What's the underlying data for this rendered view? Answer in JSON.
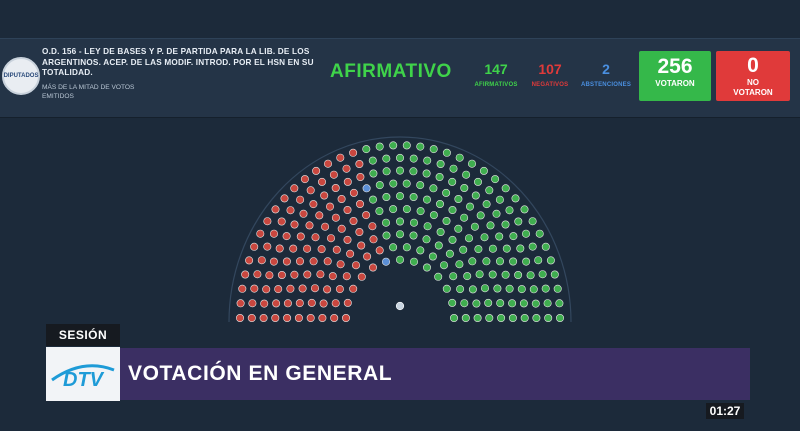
{
  "banner": {
    "logo_text": "DIPUTADOS",
    "motion_text": "O.D. 156 - LEY DE BASES Y P. DE PARTIDA PARA LA LIB. DE LOS ARGENTINOS. ACEP. DE LAS MODIF. INTROD. POR EL HSN EN SU TOTALIDAD.",
    "majority_rule": "MÁS DE LA MITAD DE VOTOS EMITIDOS",
    "result": "AFIRMATIVO",
    "afirmativos": {
      "value": "147",
      "label": "AFIRMATIVOS"
    },
    "negativos": {
      "value": "107",
      "label": "NEGATIVOS"
    },
    "abstenciones": {
      "value": "2",
      "label": "ABSTENCIONES"
    },
    "votaron": {
      "value": "256",
      "label": "VOTARON"
    },
    "no_votaron": {
      "value": "0",
      "label_line1": "NO",
      "label_line2": "VOTARON"
    }
  },
  "chamber": {
    "seats_yes": 147,
    "seats_no": 107,
    "seats_abstain": 2,
    "colors": {
      "yes": "#3fae4f",
      "no": "#c9473f",
      "abstain": "#5b8fd6",
      "president": "#c8d4e0"
    }
  },
  "lower_third": {
    "section": "SESIÓN",
    "channel_logo": "DTV",
    "headline": "VOTACIÓN EN GENERAL",
    "clock": "01:27"
  },
  "colors": {
    "background": "#1c2a3a",
    "banner": "#243447",
    "accent_green": "#3fd34a",
    "accent_red": "#e03a3a",
    "accent_blue": "#4a8fe0",
    "lower_bar": "#3b2f63"
  }
}
